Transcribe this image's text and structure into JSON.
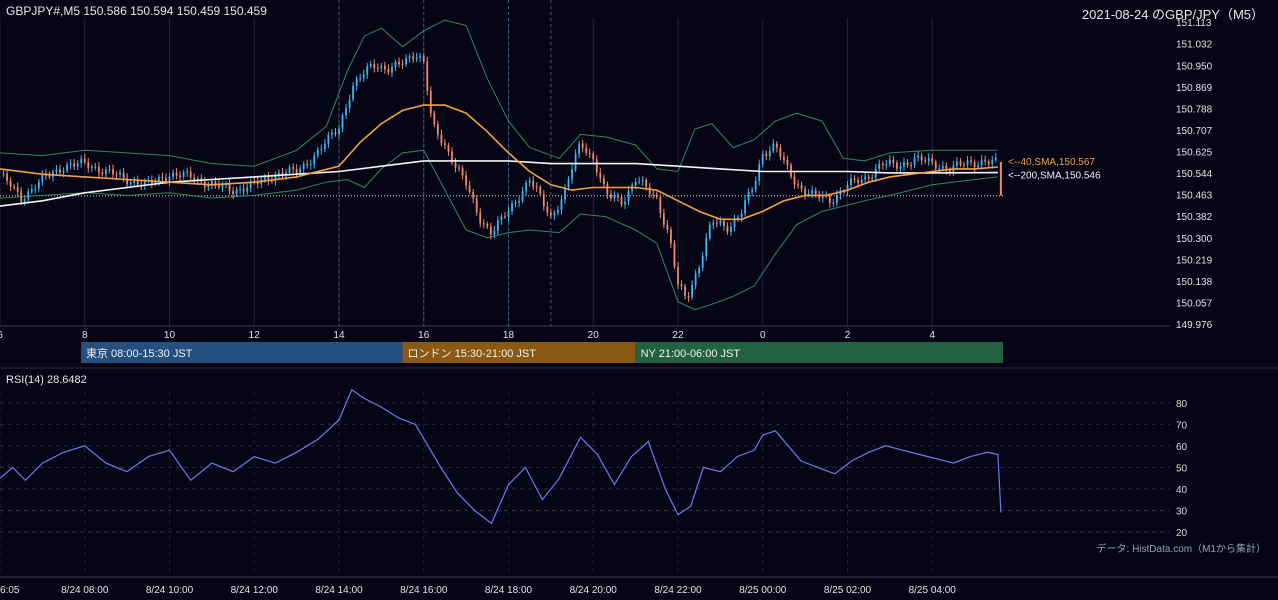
{
  "header": {
    "symbol_info": "GBPJPY#,M5 150.586 150.594 150.459 150.459",
    "title": "2021-08-24 のGBP/JPY（M5）"
  },
  "colors": {
    "background": "#050515",
    "candle_up": "#3fb6f0",
    "candle_down": "#ef8a6a",
    "sma40": "#f5a040",
    "sma200": "#f4f4f4",
    "bollinger": "#2e8b57",
    "rsi": "#6f79f0",
    "session_tokyo": "#244f7e",
    "session_london": "#8a5a14",
    "session_ny": "#236140"
  },
  "chart_data": [
    {
      "type": "candlestick",
      "y_ticks": [
        "151.113",
        "151.032",
        "150.950",
        "150.869",
        "150.788",
        "150.707",
        "150.625",
        "150.544",
        "150.463",
        "150.382",
        "150.300",
        "150.219",
        "150.138",
        "150.057",
        "149.976"
      ],
      "ylim": [
        149.976,
        151.113
      ],
      "x_ticks": [
        "6",
        "8",
        "10",
        "12",
        "14",
        "16",
        "18",
        "20",
        "22",
        "0",
        "2",
        "4"
      ],
      "x_tick_hours": [
        6,
        8,
        10,
        12,
        14,
        16,
        18,
        20,
        22,
        24,
        26,
        28
      ],
      "x_range_hours": [
        6,
        29.67
      ],
      "last_price": 150.459,
      "keypoints": [
        [
          6.0,
          150.54
        ],
        [
          6.5,
          150.45
        ],
        [
          7.0,
          150.52
        ],
        [
          7.5,
          150.57
        ],
        [
          8.0,
          150.58
        ],
        [
          8.5,
          150.55
        ],
        [
          9.0,
          150.52
        ],
        [
          9.5,
          150.5
        ],
        [
          10.0,
          150.54
        ],
        [
          10.5,
          150.53
        ],
        [
          11.0,
          150.5
        ],
        [
          11.5,
          150.48
        ],
        [
          12.0,
          150.5
        ],
        [
          12.5,
          150.54
        ],
        [
          13.0,
          150.55
        ],
        [
          13.5,
          150.62
        ],
        [
          14.0,
          150.72
        ],
        [
          14.3,
          150.86
        ],
        [
          14.8,
          150.96
        ],
        [
          15.2,
          150.93
        ],
        [
          15.5,
          150.96
        ],
        [
          15.8,
          151.0
        ],
        [
          16.0,
          150.96
        ],
        [
          16.2,
          150.72
        ],
        [
          16.5,
          150.65
        ],
        [
          17.0,
          150.5
        ],
        [
          17.3,
          150.38
        ],
        [
          17.6,
          150.32
        ],
        [
          18.0,
          150.4
        ],
        [
          18.5,
          150.52
        ],
        [
          19.0,
          150.38
        ],
        [
          19.3,
          150.46
        ],
        [
          19.7,
          150.66
        ],
        [
          20.0,
          150.6
        ],
        [
          20.3,
          150.46
        ],
        [
          20.7,
          150.44
        ],
        [
          21.0,
          150.52
        ],
        [
          21.5,
          150.45
        ],
        [
          21.8,
          150.3
        ],
        [
          22.0,
          150.12
        ],
        [
          22.2,
          150.07
        ],
        [
          22.5,
          150.2
        ],
        [
          22.8,
          150.36
        ],
        [
          23.2,
          150.34
        ],
        [
          23.5,
          150.4
        ],
        [
          23.8,
          150.5
        ],
        [
          24.0,
          150.62
        ],
        [
          24.3,
          150.65
        ],
        [
          24.5,
          150.58
        ],
        [
          24.8,
          150.5
        ],
        [
          25.2,
          150.46
        ],
        [
          25.6,
          150.44
        ],
        [
          26.0,
          150.5
        ],
        [
          26.4,
          150.52
        ],
        [
          26.8,
          150.58
        ],
        [
          27.2,
          150.57
        ],
        [
          27.6,
          150.6
        ],
        [
          28.0,
          150.58
        ],
        [
          28.4,
          150.56
        ],
        [
          28.8,
          150.58
        ],
        [
          29.2,
          150.59
        ],
        [
          29.55,
          150.58
        ]
      ],
      "sma40_points": [
        [
          6.0,
          150.56
        ],
        [
          7.0,
          150.54
        ],
        [
          8.0,
          150.53
        ],
        [
          9.0,
          150.52
        ],
        [
          10.0,
          150.51
        ],
        [
          11.0,
          150.5
        ],
        [
          12.0,
          150.51
        ],
        [
          13.0,
          150.53
        ],
        [
          14.0,
          150.57
        ],
        [
          14.5,
          150.66
        ],
        [
          15.0,
          150.73
        ],
        [
          15.5,
          150.78
        ],
        [
          16.0,
          150.8
        ],
        [
          16.5,
          150.8
        ],
        [
          17.0,
          150.77
        ],
        [
          17.5,
          150.7
        ],
        [
          18.0,
          150.62
        ],
        [
          18.5,
          150.55
        ],
        [
          19.0,
          150.5
        ],
        [
          19.5,
          150.48
        ],
        [
          20.0,
          150.49
        ],
        [
          21.0,
          150.49
        ],
        [
          21.5,
          150.48
        ],
        [
          22.0,
          150.44
        ],
        [
          22.5,
          150.4
        ],
        [
          23.0,
          150.37
        ],
        [
          23.5,
          150.37
        ],
        [
          24.0,
          150.4
        ],
        [
          24.5,
          150.44
        ],
        [
          25.0,
          150.46
        ],
        [
          25.5,
          150.46
        ],
        [
          26.0,
          150.48
        ],
        [
          26.5,
          150.51
        ],
        [
          27.0,
          150.53
        ],
        [
          27.5,
          150.54
        ],
        [
          28.0,
          150.55
        ],
        [
          28.5,
          150.56
        ],
        [
          29.0,
          150.56
        ],
        [
          29.55,
          150.567
        ]
      ],
      "sma200_points": [
        [
          6.0,
          150.42
        ],
        [
          7.0,
          150.44
        ],
        [
          8.0,
          150.47
        ],
        [
          9.0,
          150.49
        ],
        [
          10.0,
          150.51
        ],
        [
          11.0,
          150.52
        ],
        [
          12.0,
          150.53
        ],
        [
          13.0,
          150.54
        ],
        [
          14.0,
          150.55
        ],
        [
          15.0,
          150.57
        ],
        [
          16.0,
          150.59
        ],
        [
          17.0,
          150.59
        ],
        [
          18.0,
          150.59
        ],
        [
          19.0,
          150.58
        ],
        [
          20.0,
          150.58
        ],
        [
          21.0,
          150.58
        ],
        [
          22.0,
          150.57
        ],
        [
          23.0,
          150.56
        ],
        [
          24.0,
          150.55
        ],
        [
          25.0,
          150.55
        ],
        [
          26.0,
          150.55
        ],
        [
          27.0,
          150.545
        ],
        [
          28.0,
          150.545
        ],
        [
          29.55,
          150.546
        ]
      ],
      "bb_upper": [
        [
          6.0,
          150.62
        ],
        [
          7.0,
          150.61
        ],
        [
          8.0,
          150.63
        ],
        [
          9.0,
          150.62
        ],
        [
          10.0,
          150.61
        ],
        [
          11.0,
          150.58
        ],
        [
          12.0,
          150.57
        ],
        [
          13.0,
          150.63
        ],
        [
          13.7,
          150.72
        ],
        [
          14.2,
          150.93
        ],
        [
          14.6,
          151.06
        ],
        [
          15.0,
          151.09
        ],
        [
          15.5,
          151.02
        ],
        [
          16.0,
          151.08
        ],
        [
          16.5,
          151.12
        ],
        [
          17.0,
          151.1
        ],
        [
          17.5,
          150.9
        ],
        [
          18.0,
          150.74
        ],
        [
          18.5,
          150.64
        ],
        [
          19.2,
          150.6
        ],
        [
          19.7,
          150.69
        ],
        [
          20.3,
          150.68
        ],
        [
          21.0,
          150.65
        ],
        [
          21.5,
          150.56
        ],
        [
          22.0,
          150.55
        ],
        [
          22.4,
          150.71
        ],
        [
          22.8,
          150.73
        ],
        [
          23.3,
          150.64
        ],
        [
          23.8,
          150.67
        ],
        [
          24.3,
          150.74
        ],
        [
          24.8,
          150.77
        ],
        [
          25.4,
          150.74
        ],
        [
          25.9,
          150.6
        ],
        [
          26.4,
          150.59
        ],
        [
          27.0,
          150.62
        ],
        [
          28.0,
          150.63
        ],
        [
          29.0,
          150.63
        ],
        [
          29.55,
          150.63
        ]
      ],
      "bb_lower": [
        [
          6.0,
          150.45
        ],
        [
          7.0,
          150.46
        ],
        [
          8.0,
          150.47
        ],
        [
          9.0,
          150.46
        ],
        [
          10.0,
          150.47
        ],
        [
          11.0,
          150.45
        ],
        [
          12.0,
          150.46
        ],
        [
          13.0,
          150.48
        ],
        [
          13.7,
          150.51
        ],
        [
          14.2,
          150.52
        ],
        [
          14.6,
          150.49
        ],
        [
          15.0,
          150.56
        ],
        [
          15.5,
          150.62
        ],
        [
          16.0,
          150.63
        ],
        [
          16.5,
          150.48
        ],
        [
          17.0,
          150.33
        ],
        [
          17.5,
          150.3
        ],
        [
          18.0,
          150.32
        ],
        [
          18.5,
          150.33
        ],
        [
          19.2,
          150.32
        ],
        [
          19.7,
          150.39
        ],
        [
          20.3,
          150.38
        ],
        [
          21.0,
          150.33
        ],
        [
          21.5,
          150.28
        ],
        [
          22.0,
          150.06
        ],
        [
          22.4,
          150.03
        ],
        [
          22.8,
          150.05
        ],
        [
          23.3,
          150.08
        ],
        [
          23.8,
          150.12
        ],
        [
          24.3,
          150.24
        ],
        [
          24.8,
          150.35
        ],
        [
          25.4,
          150.4
        ],
        [
          25.9,
          150.42
        ],
        [
          26.4,
          150.44
        ],
        [
          27.0,
          150.46
        ],
        [
          28.0,
          150.5
        ],
        [
          29.0,
          150.52
        ],
        [
          29.55,
          150.53
        ]
      ],
      "labels": {
        "sma40": "<--40,SMA,150.567",
        "sma200": "<--200,SMA,150.546"
      }
    },
    {
      "type": "line",
      "name": "RSI",
      "ylim": [
        20,
        85
      ],
      "y_ticks": [
        "80",
        "70",
        "60",
        "50",
        "40",
        "30",
        "20"
      ],
      "x_ticks": [
        "6:05",
        "8/24 08:00",
        "8/24 10:00",
        "8/24 12:00",
        "8/24 14:00",
        "8/24 16:00",
        "8/24 18:00",
        "8/24 20:00",
        "8/24 22:00",
        "8/25 00:00",
        "8/25 02:00",
        "8/25 04:00"
      ],
      "points": [
        [
          6.0,
          45
        ],
        [
          6.3,
          50
        ],
        [
          6.6,
          44
        ],
        [
          7.0,
          52
        ],
        [
          7.5,
          57
        ],
        [
          8.0,
          60
        ],
        [
          8.5,
          52
        ],
        [
          9.0,
          48
        ],
        [
          9.5,
          55
        ],
        [
          10.0,
          58
        ],
        [
          10.5,
          44
        ],
        [
          11.0,
          52
        ],
        [
          11.5,
          48
        ],
        [
          12.0,
          55
        ],
        [
          12.5,
          52
        ],
        [
          13.0,
          57
        ],
        [
          13.5,
          63
        ],
        [
          14.0,
          72
        ],
        [
          14.3,
          86
        ],
        [
          14.6,
          82
        ],
        [
          15.0,
          78
        ],
        [
          15.4,
          73
        ],
        [
          15.8,
          70
        ],
        [
          16.1,
          60
        ],
        [
          16.4,
          50
        ],
        [
          16.8,
          38
        ],
        [
          17.2,
          30
        ],
        [
          17.6,
          24
        ],
        [
          18.0,
          42
        ],
        [
          18.4,
          50
        ],
        [
          18.8,
          35
        ],
        [
          19.2,
          45
        ],
        [
          19.7,
          64
        ],
        [
          20.1,
          56
        ],
        [
          20.5,
          42
        ],
        [
          20.9,
          55
        ],
        [
          21.3,
          62
        ],
        [
          21.7,
          40
        ],
        [
          22.0,
          28
        ],
        [
          22.3,
          32
        ],
        [
          22.6,
          50
        ],
        [
          23.0,
          48
        ],
        [
          23.4,
          55
        ],
        [
          23.8,
          58
        ],
        [
          24.0,
          65
        ],
        [
          24.3,
          67
        ],
        [
          24.6,
          60
        ],
        [
          24.9,
          53
        ],
        [
          25.3,
          50
        ],
        [
          25.7,
          47
        ],
        [
          26.1,
          53
        ],
        [
          26.5,
          57
        ],
        [
          26.9,
          60
        ],
        [
          27.3,
          58
        ],
        [
          27.7,
          56
        ],
        [
          28.1,
          54
        ],
        [
          28.5,
          52
        ],
        [
          28.9,
          55
        ],
        [
          29.3,
          57
        ],
        [
          29.55,
          56
        ],
        [
          29.62,
          29
        ]
      ],
      "label": "RSI(14) 28.6482",
      "source_note": "データ: HistData.com（M1から集計）"
    }
  ],
  "sessions": [
    {
      "label": "東京 08:00-15:30 JST",
      "start": 8,
      "end": 15.5
    },
    {
      "label": "ロンドン 15:30-21:00 JST",
      "start": 15.5,
      "end": 21
    },
    {
      "label": "NY 21:00-06:00 JST",
      "start": 21,
      "end": 30
    }
  ]
}
